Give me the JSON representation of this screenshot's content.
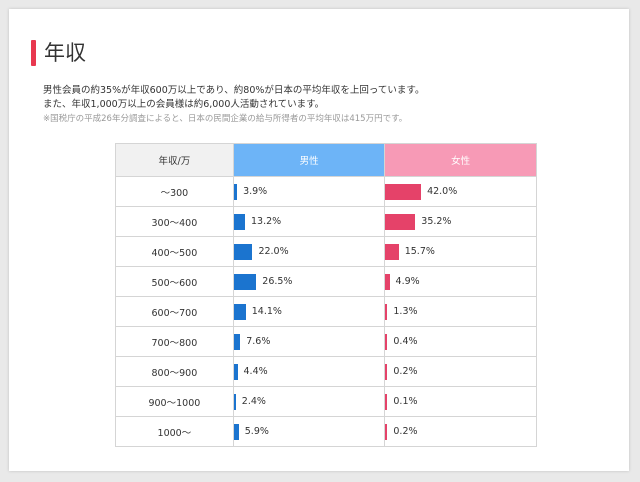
{
  "section": {
    "title": "年収",
    "desc_line1": "男性会員の約35%が年収600万以上であり、約80%が日本の平均年収を上回っています。",
    "desc_line2": "また、年収1,000万以上の会員様は約6,000人活動されています。",
    "note": "※国税庁の平成26年分調査によると、日本の民間企業の給与所得者の平均年収は415万円です。"
  },
  "colors": {
    "accent": "#e8384f",
    "male_header": "#6db4f7",
    "female_header": "#f79ab6",
    "male_bar": "#1b74cf",
    "female_bar": "#e54269"
  },
  "chart_data": {
    "type": "bar",
    "orientation": "horizontal",
    "columns": [
      "年収/万",
      "男性",
      "女性"
    ],
    "categories": [
      "〜300",
      "300〜400",
      "400〜500",
      "500〜600",
      "600〜700",
      "700〜800",
      "800〜900",
      "900〜1000",
      "1000〜"
    ],
    "series": [
      {
        "name": "男性",
        "values": [
          3.9,
          13.2,
          22.0,
          26.5,
          14.1,
          7.6,
          4.4,
          2.4,
          5.9
        ],
        "labels": [
          "3.9%",
          "13.2%",
          "22.0%",
          "26.5%",
          "14.1%",
          "7.6%",
          "4.4%",
          "2.4%",
          "5.9%"
        ]
      },
      {
        "name": "女性",
        "values": [
          42.0,
          35.2,
          15.7,
          4.9,
          1.3,
          0.4,
          0.2,
          0.1,
          0.2
        ],
        "labels": [
          "42.0%",
          "35.2%",
          "15.7%",
          "4.9%",
          "1.3%",
          "0.4%",
          "0.2%",
          "0.1%",
          "0.2%"
        ]
      }
    ],
    "unit": "%"
  }
}
